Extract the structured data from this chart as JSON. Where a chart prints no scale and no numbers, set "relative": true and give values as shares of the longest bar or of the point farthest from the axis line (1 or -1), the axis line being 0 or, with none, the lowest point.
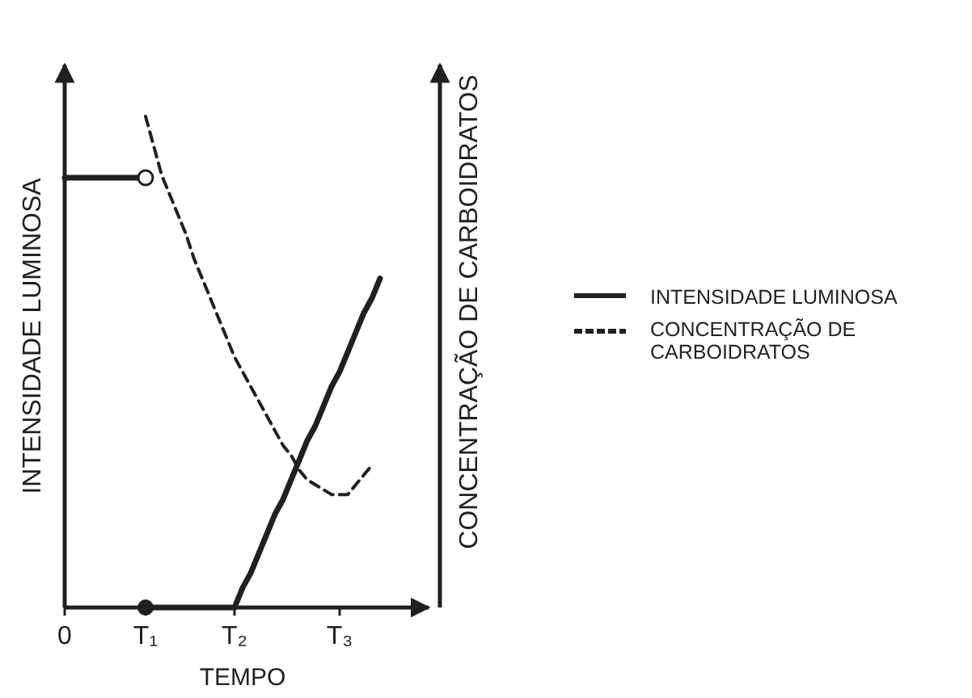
{
  "chart_data": {
    "type": "line",
    "relative": true,
    "xlabel": "TEMPO",
    "ylabel": "INTENSIDADE LUMINOSA",
    "y2label": "CONCENTRAÇÃO DE CARBOIDRATOS",
    "categories": [
      "0",
      null,
      null,
      null,
      null,
      null,
      null,
      null,
      null,
      null,
      "T₁",
      null,
      null,
      null,
      null,
      null,
      null,
      null,
      null,
      null,
      null,
      "T₂",
      null,
      null,
      null,
      null,
      null,
      null,
      null,
      null,
      null,
      null,
      null,
      null,
      "T₃",
      null,
      null,
      null,
      null,
      null,
      null,
      null
    ],
    "legend": "right",
    "series": [
      {
        "name": "INTENSIDADE LUMINOSA",
        "color": "#231f20",
        "line_style": "solid",
        "values": [
          0.875,
          0.875,
          0.875,
          0.875,
          0.875,
          0.875,
          0.875,
          0.875,
          0.875,
          0.875,
          0.875,
          null,
          null,
          null,
          null,
          null,
          null,
          null,
          null,
          null,
          null,
          null,
          null,
          null,
          null,
          null,
          null,
          null,
          null,
          null,
          null,
          null,
          null,
          null,
          null,
          null,
          null,
          null,
          null,
          null,
          null,
          null
        ]
      },
      {
        "color": "#231f20",
        "line_style": "solid",
        "values": [
          null,
          null,
          null,
          null,
          null,
          null,
          null,
          null,
          null,
          null,
          0,
          0,
          0,
          0,
          0,
          0,
          0,
          0,
          0,
          0,
          0,
          0,
          0.04,
          0.07,
          0.11,
          0.15,
          0.19,
          0.22,
          0.26,
          0.3,
          0.34,
          0.37,
          0.41,
          0.45,
          0.48,
          0.52,
          0.56,
          0.6,
          0.63,
          0.67,
          null,
          null
        ]
      },
      {
        "name": "CONCENTRAÇÃO DE CARBOIDRATOS",
        "color": "#231f20",
        "line_style": "dashed",
        "values": [
          null,
          null,
          null,
          null,
          null,
          null,
          null,
          null,
          null,
          null,
          1,
          0.94,
          0.88,
          0.84,
          0.8,
          0.76,
          0.71,
          0.67,
          0.63,
          0.59,
          0.55,
          0.51,
          0.48,
          0.45,
          0.42,
          0.39,
          0.36,
          0.33,
          0.31,
          0.28,
          0.26,
          0.25,
          0.24,
          0.23,
          0.23,
          0.23,
          0.25,
          0.27,
          0.29,
          null,
          null,
          null
        ]
      }
    ]
  }
}
